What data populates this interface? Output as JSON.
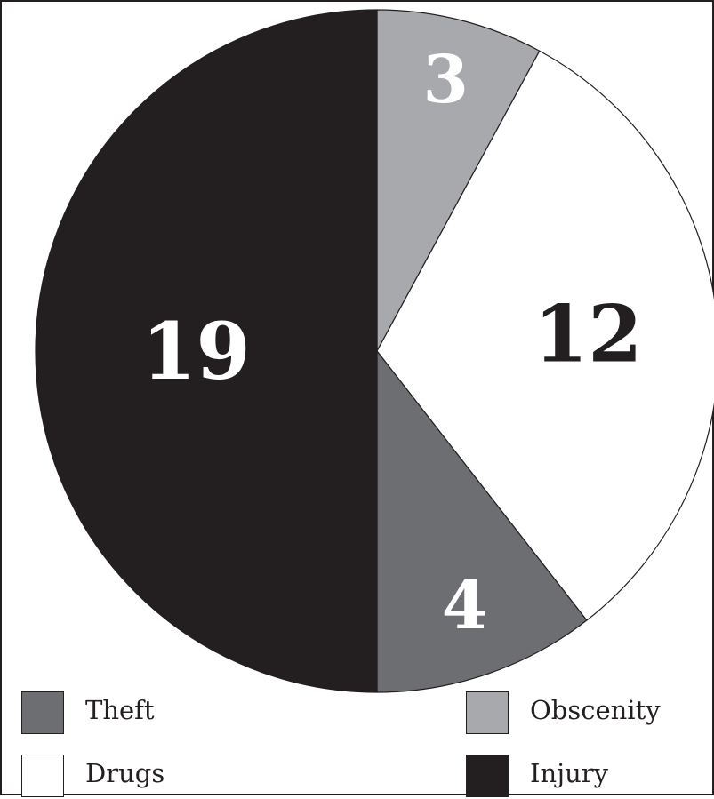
{
  "chart_data": {
    "type": "pie",
    "title": "",
    "start_angle_deg": 0,
    "direction": "clockwise",
    "slices": [
      {
        "label": "Obscenity",
        "value": 3,
        "color": "#a8a9ad",
        "label_color": "#ffffff"
      },
      {
        "label": "Drugs",
        "value": 12,
        "color": "#ffffff",
        "label_color": "#231f20"
      },
      {
        "label": "Theft",
        "value": 4,
        "color": "#6d6e71",
        "label_color": "#ffffff"
      },
      {
        "label": "Injury",
        "value": 19,
        "color": "#231f20",
        "label_color": "#ffffff"
      }
    ],
    "data_labels": [
      "3",
      "12",
      "4",
      "19"
    ],
    "legend": {
      "placement": "bottom",
      "entries": [
        {
          "label": "Theft",
          "color": "#6d6e71"
        },
        {
          "label": "Obscenity",
          "color": "#a8a9ad"
        },
        {
          "label": "Drugs",
          "color": "#ffffff"
        },
        {
          "label": "Injury",
          "color": "#231f20"
        }
      ]
    }
  }
}
